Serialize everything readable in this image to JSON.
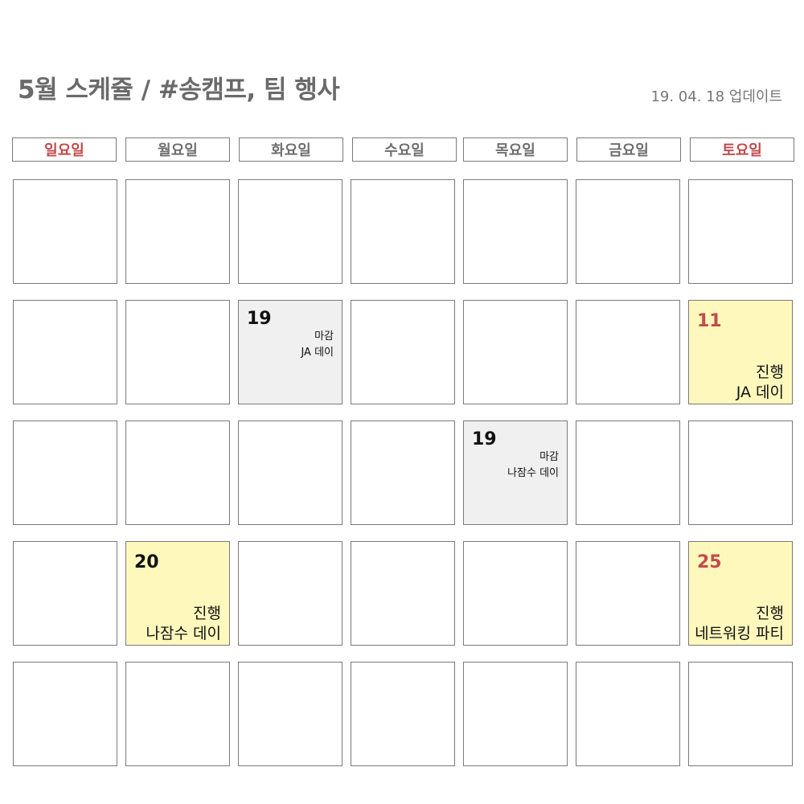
{
  "title": "5월 스케쥴 / #송캠프, 팀 행사",
  "updated": "19. 04. 18 업데이트",
  "colors": {
    "weekend": "#c24b4b",
    "deadline_bg": "#f0f0f0",
    "event_bg": "#fff8bd",
    "border": "#7a7a7a"
  },
  "weekdays": [
    "일요일",
    "월요일",
    "화요일",
    "수요일",
    "목요일",
    "금요일",
    "토요일"
  ],
  "events": {
    "deadline_ja": {
      "date": "19",
      "line1": "마감",
      "line2": "JA 데이"
    },
    "event_ja": {
      "date": "11",
      "line1": "진행",
      "line2": "JA 데이"
    },
    "deadline_najamsu": {
      "date": "19",
      "line1": "마감",
      "line2": "나잠수 데이"
    },
    "event_najamsu": {
      "date": "20",
      "line1": "진행",
      "line2": "나잠수 데이"
    },
    "event_network": {
      "date": "25",
      "line1": "진행",
      "line2": "네트워킹 파티"
    }
  }
}
